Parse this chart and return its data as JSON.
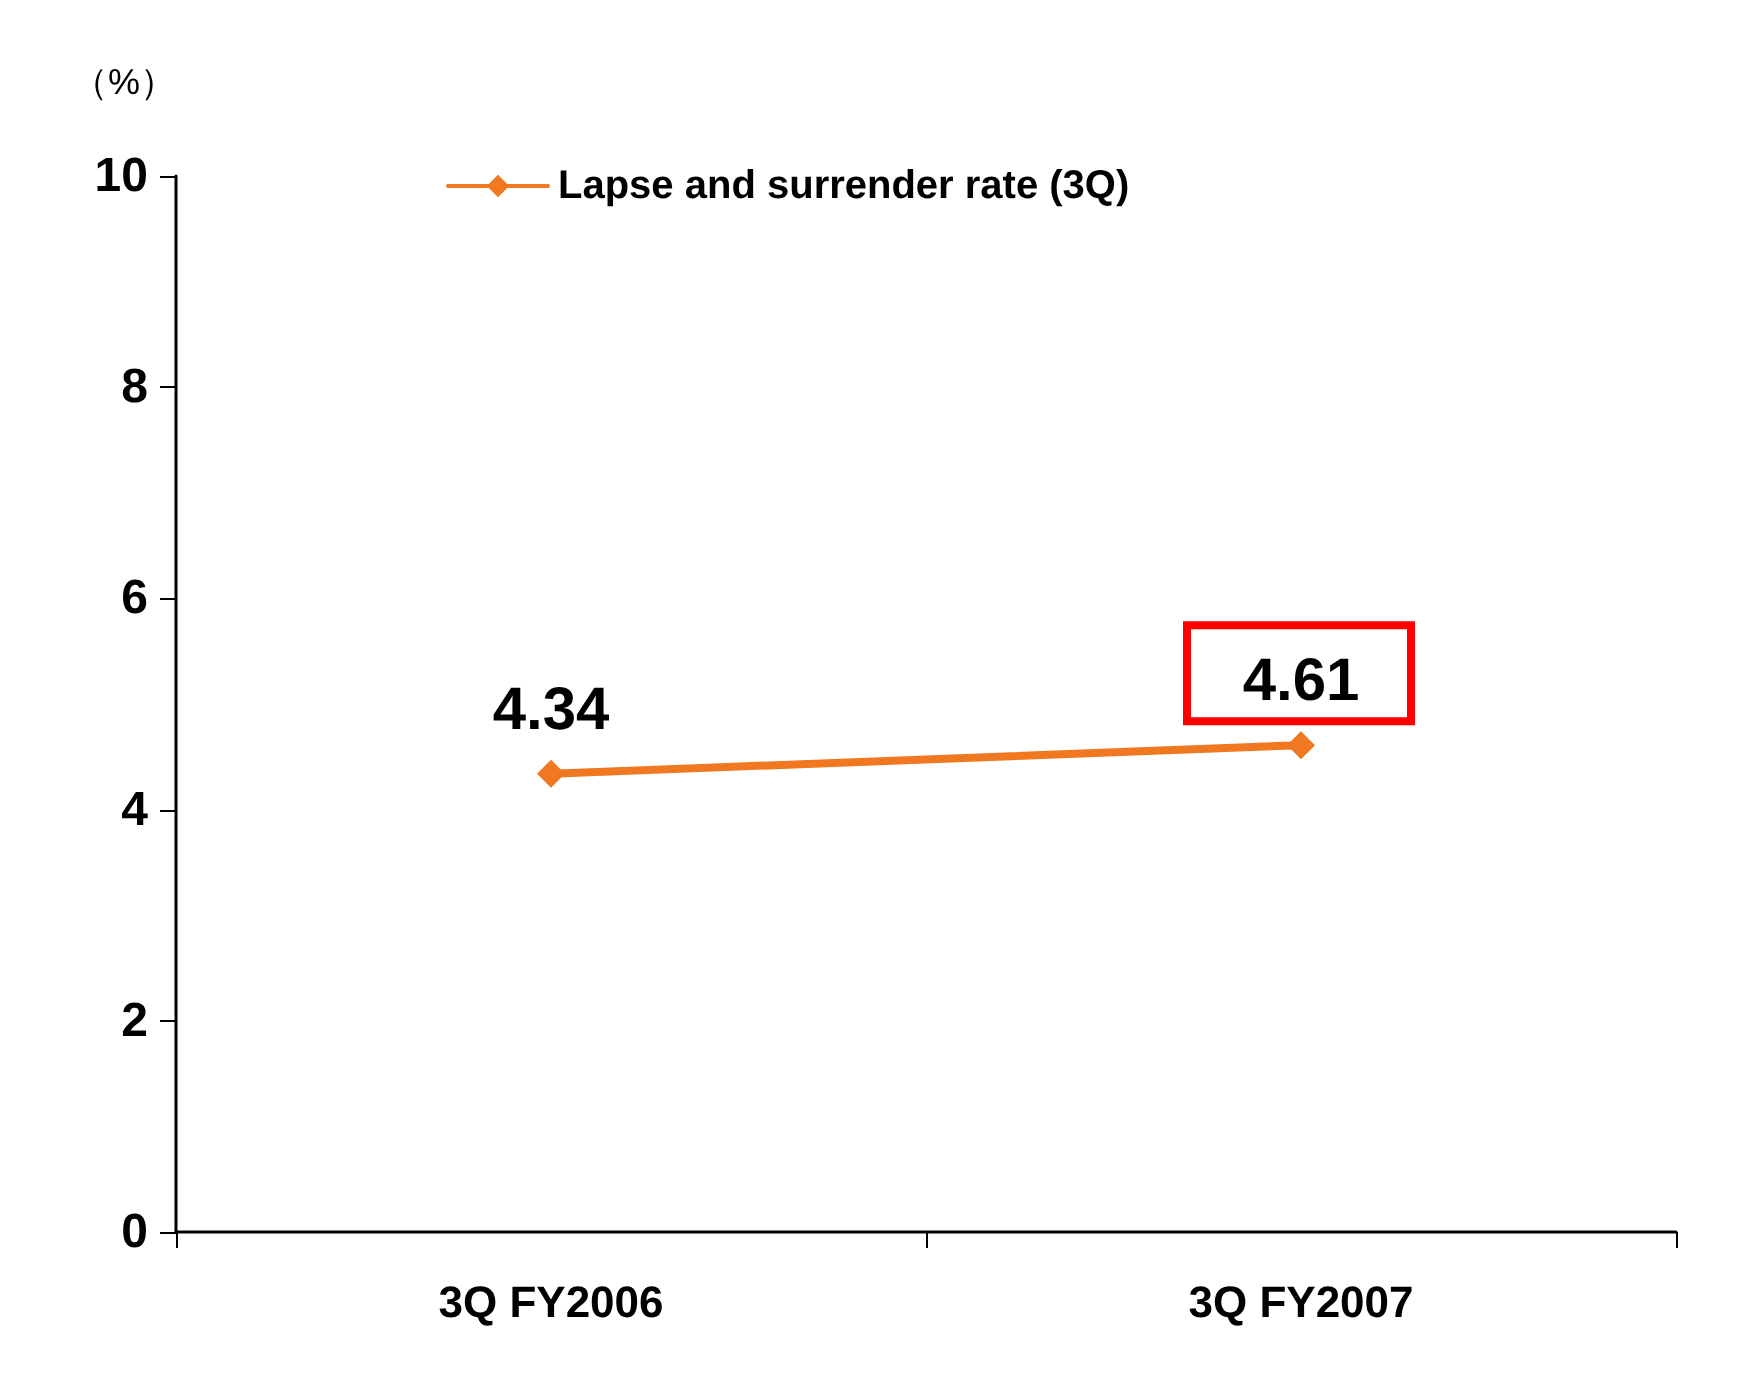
{
  "chart_data": {
    "type": "line",
    "ylabel": "（%）",
    "categories": [
      "3Q FY2006",
      "3Q FY2007"
    ],
    "series": [
      {
        "name": "Lapse and surrender rate (3Q)",
        "color": "#f07820",
        "values": [
          4.34,
          4.61
        ]
      }
    ],
    "ylim": [
      0,
      10
    ],
    "yticks": [
      0,
      2,
      4,
      6,
      8,
      10
    ],
    "grid": false,
    "legend": "top",
    "marker": "diamond",
    "line_style": "solid",
    "data_labels": true
  }
}
